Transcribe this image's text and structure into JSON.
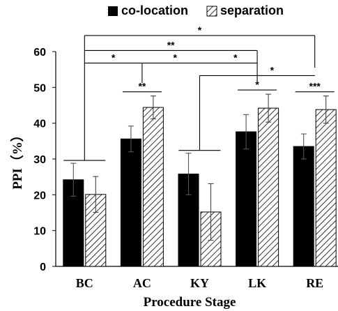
{
  "chart_data": {
    "type": "bar",
    "xlabel": "Procedure Stage",
    "ylabel": "PPI（%）",
    "ylim": [
      0,
      60
    ],
    "yticks": [
      0,
      10,
      20,
      30,
      40,
      50,
      60
    ],
    "categories": [
      "BC",
      "AC",
      "KY",
      "LK",
      "RE"
    ],
    "series": [
      {
        "name": "co-location",
        "fill": "solid",
        "color": "#000000",
        "values": [
          24.2,
          35.6,
          25.8,
          37.6,
          33.5
        ],
        "errors": [
          4.6,
          3.6,
          5.8,
          4.8,
          3.5
        ]
      },
      {
        "name": "separation",
        "fill": "hatched",
        "color": "#000000",
        "values": [
          20.1,
          44.4,
          15.2,
          44.2,
          43.8
        ],
        "errors": [
          5.0,
          3.2,
          7.9,
          3.9,
          3.8
        ]
      }
    ],
    "legend": {
      "position": "top"
    },
    "grid": false,
    "significance": {
      "bracket_mark": "*",
      "pair_marks": [
        "",
        "**",
        "",
        "*",
        "***"
      ],
      "top_brackets": [
        "*",
        "**",
        "*",
        "*",
        "*",
        "*"
      ]
    }
  }
}
